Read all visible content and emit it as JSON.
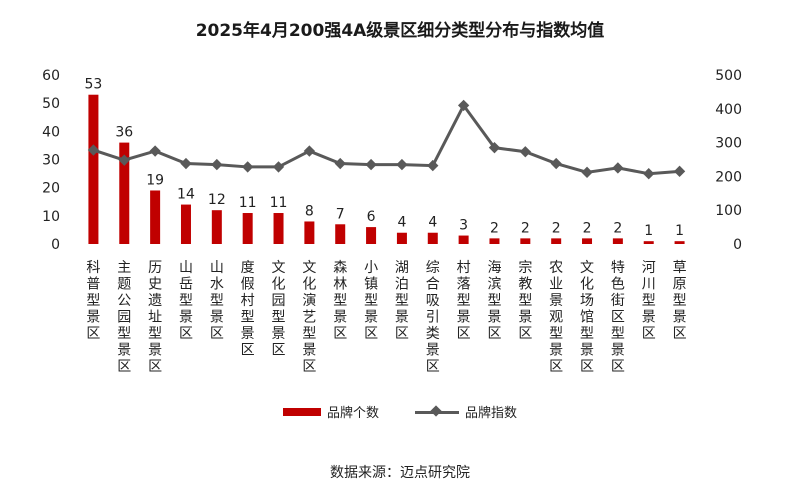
{
  "chart_data": {
    "type": "bar",
    "title": "2025年4月200强4A级景区细分类型分布与指数均值",
    "categories": [
      "科普型景区",
      "主题公园型景区",
      "历史遗址型景区",
      "山岳型景区",
      "山水型景区",
      "度假村型景区",
      "文化园型景区",
      "文化演艺型景区",
      "森林型景区",
      "小镇型景区",
      "湖泊型景区",
      "综合吸引类景区",
      "村落型景区",
      "海滨型景区",
      "宗教型景区",
      "农业景观型景区",
      "文化场馆型景区",
      "特色街区型景区",
      "河川型景区",
      "草原型景区"
    ],
    "series": [
      {
        "name": "品牌个数",
        "type": "bar",
        "axis": "left",
        "color": "#C00000",
        "values": [
          53,
          36,
          19,
          14,
          12,
          11,
          11,
          8,
          7,
          6,
          4,
          4,
          3,
          2,
          2,
          2,
          2,
          2,
          1,
          1
        ]
      },
      {
        "name": "品牌指数",
        "type": "line",
        "axis": "right",
        "color": "#595959",
        "values": [
          278,
          248,
          275,
          238,
          235,
          228,
          228,
          275,
          238,
          235,
          235,
          232,
          410,
          285,
          273,
          238,
          212,
          225,
          208,
          215
        ]
      }
    ],
    "ylim_left": [
      0,
      60
    ],
    "yticks_left": [
      "0",
      "10",
      "20",
      "30",
      "40",
      "50",
      "60"
    ],
    "ylim_right": [
      0,
      500
    ],
    "yticks_right": [
      "0",
      "100",
      "200",
      "300",
      "400",
      "500"
    ],
    "grid": false,
    "legend_position": "bottom",
    "source": "数据来源：迈点研究院"
  }
}
